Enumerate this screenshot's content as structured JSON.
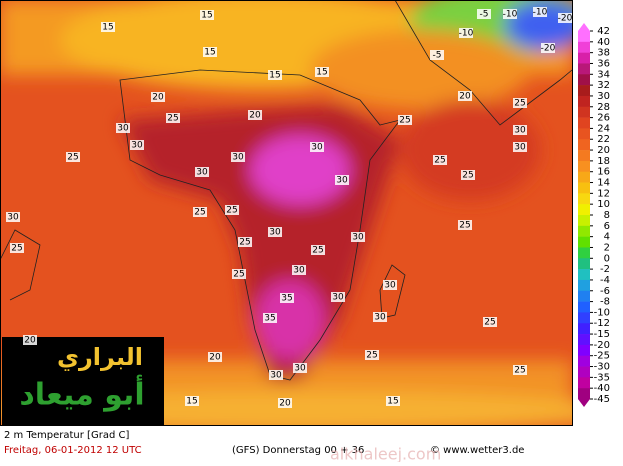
{
  "map": {
    "map_labels": [
      15,
      15,
      15,
      15,
      15,
      20,
      20,
      25,
      30,
      30,
      25,
      30,
      30,
      30,
      30,
      25,
      25,
      30,
      25,
      30,
      25,
      25,
      25,
      30,
      30,
      30,
      35,
      35,
      30,
      30,
      25,
      25,
      30,
      30,
      15,
      20,
      20,
      25,
      30,
      25,
      25,
      25,
      30,
      20,
      25,
      25,
      -10,
      -10,
      -20,
      -20,
      -5,
      -5,
      -10,
      15,
      20
    ],
    "colorbar": {
      "ticks": [
        42,
        40,
        38,
        36,
        34,
        32,
        30,
        28,
        26,
        24,
        22,
        20,
        18,
        16,
        14,
        12,
        10,
        8,
        6,
        4,
        2,
        0,
        -2,
        -4,
        -6,
        -8,
        -10,
        -12,
        -15,
        -20,
        -25,
        -30,
        -35,
        -40,
        -45
      ],
      "colors": [
        "#ff70ff",
        "#f040d8",
        "#d820a8",
        "#b81878",
        "#a01048",
        "#a81c1c",
        "#c02420",
        "#d03420",
        "#e04420",
        "#e85420",
        "#f06420",
        "#f47a20",
        "#f89020",
        "#f8a818",
        "#f8c010",
        "#f8d810",
        "#f0f000",
        "#c8f000",
        "#90e800",
        "#60e000",
        "#30d040",
        "#20c080",
        "#20c0c0",
        "#20a0e0",
        "#2080f0",
        "#2060ff",
        "#3040ff",
        "#4020ff",
        "#6010ff",
        "#8000ff",
        "#a000e0",
        "#b000c0",
        "#c000a0",
        "#a00080"
      ]
    },
    "logo": {
      "line1": "البراري",
      "line2": "أبو ميعاد"
    },
    "footer": {
      "variable": "2 m Temperatur [Grad C]",
      "valid": "Freitag, 06-01-2012  12 UTC",
      "run": "(GFS) Donnerstag 00 + 36",
      "source": "© www.wetter3.de",
      "watermark": "alkhaleej.com"
    }
  }
}
